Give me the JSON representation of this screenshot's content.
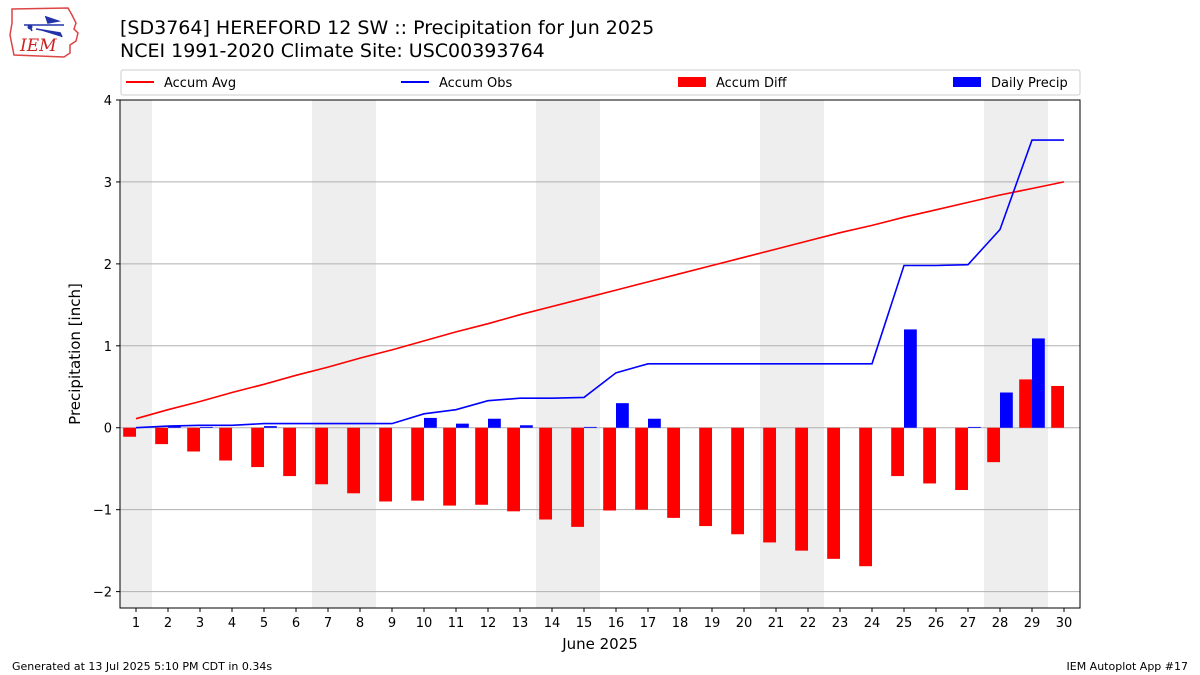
{
  "header": {
    "title_line1": "[SD3764] HEREFORD 12 SW :: Precipitation for Jun 2025",
    "title_line2": "NCEI 1991-2020 Climate Site: USC00393764",
    "logo_text": "IEM"
  },
  "footer": {
    "generated": "Generated at 13 Jul 2025 5:10 PM CDT in 0.34s",
    "app": "IEM Autoplot App #17"
  },
  "colors": {
    "accum_avg": "#ff0000",
    "accum_obs": "#0000ff",
    "accum_diff": "#ff0000",
    "daily_precip": "#0000ff",
    "weekend_shade": "#eeeeee",
    "grid": "#b0b0b0"
  },
  "chart_data": {
    "type": "bar",
    "xlabel": "June 2025",
    "ylabel": "Precipitation [inch]",
    "ylim": [
      -2.2,
      4.0
    ],
    "yticks": [
      -2,
      -1,
      0,
      1,
      2,
      3,
      4
    ],
    "ytick_labels": [
      "−2",
      "−1",
      "0",
      "1",
      "2",
      "3",
      "4"
    ],
    "grid": "horizontal",
    "legend_placement": "top, above plot",
    "categories": [
      1,
      2,
      3,
      4,
      5,
      6,
      7,
      8,
      9,
      10,
      11,
      12,
      13,
      14,
      15,
      16,
      17,
      18,
      19,
      20,
      21,
      22,
      23,
      24,
      25,
      26,
      27,
      28,
      29,
      30
    ],
    "shaded_days": [
      [
        1,
        1
      ],
      [
        7,
        8
      ],
      [
        14,
        15
      ],
      [
        21,
        22
      ],
      [
        28,
        29
      ]
    ],
    "series": [
      {
        "name": "Accum Avg",
        "kind": "line",
        "values": [
          0.11,
          0.22,
          0.32,
          0.43,
          0.53,
          0.64,
          0.74,
          0.85,
          0.95,
          1.06,
          1.17,
          1.27,
          1.38,
          1.48,
          1.58,
          1.68,
          1.78,
          1.88,
          1.98,
          2.08,
          2.18,
          2.28,
          2.38,
          2.47,
          2.57,
          2.66,
          2.75,
          2.84,
          2.92,
          3.0
        ]
      },
      {
        "name": "Accum Obs",
        "kind": "line",
        "values": [
          0.0,
          0.02,
          0.03,
          0.03,
          0.05,
          0.05,
          0.05,
          0.05,
          0.05,
          0.17,
          0.22,
          0.33,
          0.36,
          0.36,
          0.37,
          0.67,
          0.78,
          0.78,
          0.78,
          0.78,
          0.78,
          0.78,
          0.78,
          0.78,
          1.98,
          1.98,
          1.99,
          2.42,
          3.51,
          3.51
        ]
      },
      {
        "name": "Accum Diff",
        "kind": "bar",
        "values": [
          -0.11,
          -0.2,
          -0.29,
          -0.4,
          -0.48,
          -0.59,
          -0.69,
          -0.8,
          -0.9,
          -0.89,
          -0.95,
          -0.94,
          -1.02,
          -1.12,
          -1.21,
          -1.01,
          -1.0,
          -1.1,
          -1.2,
          -1.3,
          -1.4,
          -1.5,
          -1.6,
          -1.69,
          -0.59,
          -0.68,
          -0.76,
          -0.42,
          0.59,
          0.51
        ]
      },
      {
        "name": "Daily Precip",
        "kind": "bar",
        "values": [
          0.0,
          0.02,
          0.01,
          0.0,
          0.02,
          0.0,
          0.0,
          0.0,
          0.0,
          0.12,
          0.05,
          0.11,
          0.03,
          0.0,
          0.01,
          0.3,
          0.11,
          0.0,
          0.0,
          0.0,
          0.0,
          0.0,
          0.0,
          0.0,
          1.2,
          0.0,
          0.01,
          0.43,
          1.09,
          0.0
        ]
      }
    ]
  }
}
